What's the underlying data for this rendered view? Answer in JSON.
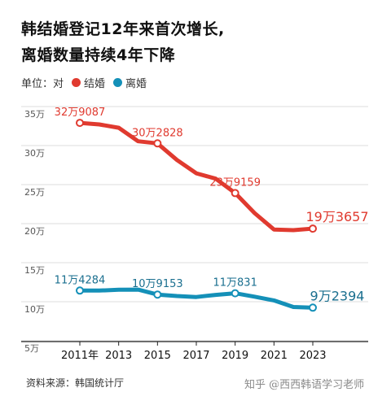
{
  "chart_data": {
    "type": "line",
    "title_lines": [
      "韩结婚登记12年来首次增长,",
      "离婚数量持续4年下降"
    ],
    "unit_label": "单位：对",
    "y_ticks": [
      "35万",
      "30万",
      "25万",
      "20万",
      "15万",
      "10万",
      "5万"
    ],
    "y_tick_values": [
      350000,
      300000,
      250000,
      200000,
      150000,
      100000,
      50000
    ],
    "ylim": [
      50000,
      350000
    ],
    "xlim": [
      2011,
      2023
    ],
    "x_tick_values": [
      2011,
      2013,
      2015,
      2017,
      2019,
      2021,
      2023
    ],
    "x_tick_labels": [
      "2011年",
      "2013",
      "2015",
      "2017",
      "2019",
      "2021",
      "2023"
    ],
    "grid": true,
    "legend_position": "top-left",
    "x": [
      2011,
      2012,
      2013,
      2014,
      2015,
      2016,
      2017,
      2018,
      2019,
      2020,
      2021,
      2022,
      2023
    ],
    "series": [
      {
        "name": "结婚",
        "color": "#e03a2f",
        "label_color": "#e03a2f",
        "values": [
          329087,
          327100,
          322800,
          305500,
          302828,
          281600,
          264500,
          257600,
          239159,
          213500,
          192500,
          191700,
          193657
        ],
        "annotations": [
          {
            "x": 2011,
            "text": "32万9087"
          },
          {
            "x": 2015,
            "text": "30万2828"
          },
          {
            "x": 2019,
            "text": "23万9159"
          },
          {
            "x": 2023,
            "text": "19万3657"
          }
        ]
      },
      {
        "name": "离婚",
        "color": "#1490b8",
        "label_color": "#1a6f8f",
        "values": [
          114284,
          114300,
          115300,
          115500,
          109153,
          107300,
          106000,
          108700,
          110831,
          106500,
          101700,
          93200,
          92394
        ],
        "annotations": [
          {
            "x": 2011,
            "text": "11万4284"
          },
          {
            "x": 2015,
            "text": "10万9153"
          },
          {
            "x": 2019,
            "text": "11万831"
          },
          {
            "x": 2023,
            "text": "9万2394"
          }
        ]
      }
    ]
  },
  "source_text": "资料来源：韩国统计厅",
  "watermark_text": "知乎 @西西韩语学习老师"
}
